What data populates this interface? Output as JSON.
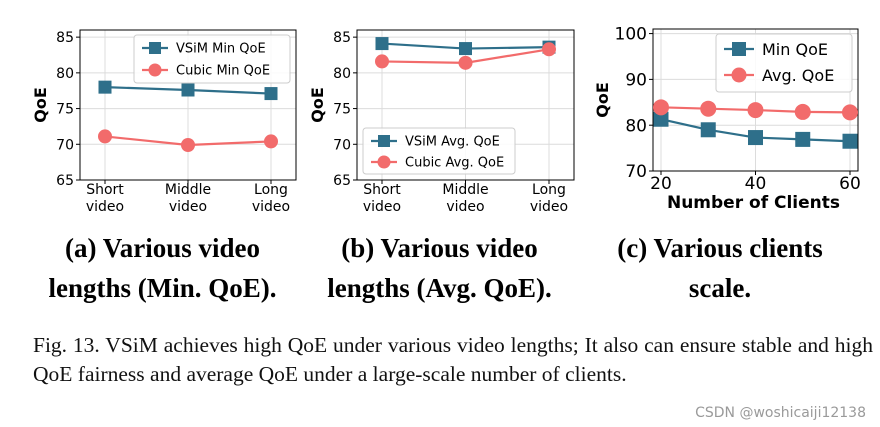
{
  "chart_data": [
    {
      "type": "line",
      "ylabel": "QoE",
      "ylim": [
        65,
        86
      ],
      "yticks": [
        65,
        70,
        75,
        80,
        85
      ],
      "categories": [
        "Short\nvideo",
        "Middle\nvideo",
        "Long\nvideo"
      ],
      "legend_position": "top-right",
      "grid": true,
      "series": [
        {
          "name": "VSiM Min QoE",
          "values": [
            78.0,
            77.6,
            77.1
          ],
          "color": "#2e6f8a",
          "marker": "square"
        },
        {
          "name": "Cubic Min QoE",
          "values": [
            71.1,
            69.9,
            70.4
          ],
          "color": "#f26b6b",
          "marker": "circle"
        }
      ],
      "subtitle": "(a) Various video lengths (Min. QoE)."
    },
    {
      "type": "line",
      "ylabel": "QoE",
      "ylim": [
        65,
        86
      ],
      "yticks": [
        65,
        70,
        75,
        80,
        85
      ],
      "categories": [
        "Short\nvideo",
        "Middle\nvideo",
        "Long\nvideo"
      ],
      "legend_position": "bottom-left",
      "grid": true,
      "series": [
        {
          "name": "VSiM Avg. QoE",
          "values": [
            84.1,
            83.4,
            83.6
          ],
          "color": "#2e6f8a",
          "marker": "square"
        },
        {
          "name": "Cubic Avg. QoE",
          "values": [
            81.6,
            81.4,
            83.3
          ],
          "color": "#f26b6b",
          "marker": "circle"
        }
      ],
      "subtitle": "(b) Various video lengths (Avg. QoE)."
    },
    {
      "type": "line",
      "xlabel": "Number of Clients",
      "ylabel": "QoE",
      "xlim": [
        20,
        60
      ],
      "ylim": [
        70,
        101
      ],
      "xticks": [
        20,
        40,
        60
      ],
      "yticks": [
        70,
        80,
        90,
        100
      ],
      "x": [
        20,
        30,
        40,
        50,
        60
      ],
      "legend_position": "top-right",
      "grid": true,
      "series": [
        {
          "name": "Min QoE",
          "values": [
            81.3,
            79.0,
            77.3,
            76.9,
            76.5
          ],
          "color": "#2e6f8a",
          "marker": "square"
        },
        {
          "name": "Avg. QoE",
          "values": [
            83.9,
            83.6,
            83.3,
            82.9,
            82.8
          ],
          "color": "#f26b6b",
          "marker": "circle"
        }
      ],
      "subtitle": "(c) Various clients scale."
    }
  ],
  "caption": "Fig. 13.   VSiM achieves high QoE under various video lengths; It also can ensure stable and high QoE fairness and average QoE under a large-scale number of clients.",
  "watermark": "CSDN @woshicaiji12138"
}
